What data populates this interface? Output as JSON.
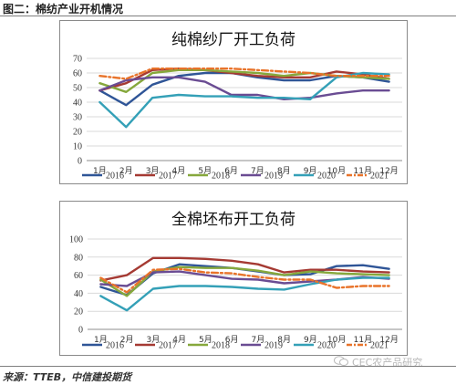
{
  "header": {
    "title": "图二：棉纺产业开机情况"
  },
  "footer": {
    "source": "来源：TTEB，中信建投期货"
  },
  "watermark": {
    "text": "CEC农产品研究"
  },
  "chart_data": [
    {
      "type": "line",
      "title": "纯棉纱厂开工负荷",
      "categories": [
        "1月",
        "2月",
        "3月",
        "4月",
        "5月",
        "6月",
        "7月",
        "8月",
        "9月",
        "10月",
        "11月",
        "12月"
      ],
      "ylim": [
        0,
        70
      ],
      "yticks": [
        0,
        10,
        20,
        30,
        40,
        50,
        60,
        70
      ],
      "grid": true,
      "legend_position": "bottom",
      "series": [
        {
          "name": "2016",
          "color": "#2f5597",
          "dash": "solid",
          "values": [
            48,
            38,
            52,
            58,
            60,
            60,
            57,
            55,
            55,
            58,
            57,
            54
          ]
        },
        {
          "name": "2017",
          "color": "#a53a33",
          "dash": "solid",
          "values": [
            48,
            53,
            62,
            63,
            62,
            60,
            58,
            57,
            57,
            61,
            59,
            56
          ]
        },
        {
          "name": "2018",
          "color": "#86a83c",
          "dash": "solid",
          "values": [
            53,
            47,
            60,
            62,
            62,
            61,
            60,
            58,
            60,
            58,
            57,
            56
          ]
        },
        {
          "name": "2019",
          "color": "#6a4c93",
          "dash": "solid",
          "values": [
            48,
            55,
            57,
            57,
            54,
            45,
            45,
            42,
            43,
            46,
            48,
            48
          ]
        },
        {
          "name": "2020",
          "color": "#34a0b7",
          "dash": "solid",
          "values": [
            40,
            23,
            43,
            45,
            44,
            44,
            43,
            43,
            42,
            57,
            60,
            59
          ]
        },
        {
          "name": "2021",
          "color": "#e8732a",
          "dash": "dashdot",
          "values": [
            58,
            56,
            63,
            63,
            63,
            63,
            62,
            61,
            60,
            58,
            58,
            58
          ]
        }
      ]
    },
    {
      "type": "line",
      "title": "全棉坯布开工负荷",
      "categories": [
        "1月",
        "2月",
        "3月",
        "4月",
        "5月",
        "6月",
        "7月",
        "8月",
        "9月",
        "10月",
        "11月",
        "12月"
      ],
      "ylim": [
        0,
        100
      ],
      "yticks": [
        0,
        20,
        40,
        60,
        80,
        100
      ],
      "grid": true,
      "legend_position": "bottom",
      "series": [
        {
          "name": "2016",
          "color": "#2f5597",
          "dash": "solid",
          "values": [
            47,
            38,
            62,
            72,
            70,
            68,
            64,
            60,
            61,
            70,
            71,
            67
          ]
        },
        {
          "name": "2017",
          "color": "#a53a33",
          "dash": "solid",
          "values": [
            54,
            60,
            79,
            79,
            78,
            76,
            72,
            63,
            66,
            66,
            64,
            63
          ]
        },
        {
          "name": "2018",
          "color": "#86a83c",
          "dash": "solid",
          "values": [
            55,
            37,
            64,
            69,
            68,
            68,
            65,
            60,
            64,
            62,
            61,
            60
          ]
        },
        {
          "name": "2019",
          "color": "#6a4c93",
          "dash": "solid",
          "values": [
            50,
            48,
            63,
            64,
            60,
            56,
            55,
            51,
            53,
            55,
            58,
            56
          ]
        },
        {
          "name": "2020",
          "color": "#34a0b7",
          "dash": "solid",
          "values": [
            37,
            21,
            45,
            48,
            48,
            47,
            45,
            44,
            50,
            55,
            57,
            57
          ]
        },
        {
          "name": "2021",
          "color": "#e8732a",
          "dash": "dashdot",
          "values": [
            57,
            41,
            66,
            67,
            63,
            62,
            58,
            55,
            55,
            46,
            48,
            48
          ]
        }
      ]
    }
  ]
}
